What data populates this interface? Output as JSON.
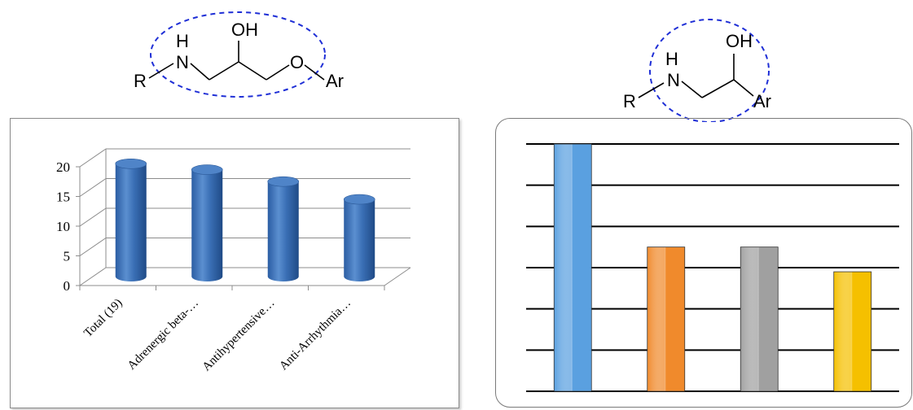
{
  "structures": {
    "left": {
      "labels": {
        "H": "H",
        "N": "N",
        "OH": "OH",
        "O": "O",
        "R": "R",
        "Ar": "Ar"
      }
    },
    "right": {
      "labels": {
        "H": "H",
        "N": "N",
        "OH": "OH",
        "R": "R",
        "Ar": "Ar"
      }
    }
  },
  "chart_data": [
    {
      "type": "bar",
      "style": "3d-cylinder",
      "categories": [
        "Total (19)",
        "Adrenergic beta-…",
        "Antihypertensive…",
        "Anti-Arrhythmia…"
      ],
      "values": [
        19,
        18,
        16,
        13
      ],
      "yticks": [
        "0",
        "5",
        "10",
        "15",
        "20"
      ],
      "ylim": [
        0,
        20
      ],
      "grid": true,
      "colors": {
        "bar": "#3a6fb5"
      }
    },
    {
      "type": "bar",
      "categories": [
        "",
        "",
        "",
        ""
      ],
      "values": [
        6,
        3.5,
        3.5,
        2.9
      ],
      "ylim": [
        0,
        6
      ],
      "grid": true,
      "colors": [
        "#5aa0e0",
        "#f08a2c",
        "#a0a0a0",
        "#f5c000"
      ]
    }
  ]
}
